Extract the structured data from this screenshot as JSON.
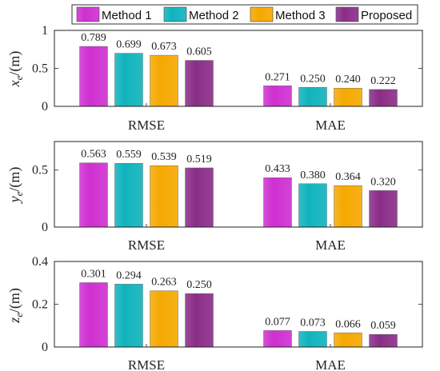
{
  "legend": [
    "Method 1",
    "Method 2",
    "Method 3",
    "Proposed"
  ],
  "colors": [
    "#cf2fd1",
    "#10b3bd",
    "#f5a800",
    "#8a2d88"
  ],
  "chart_data": [
    {
      "type": "bar",
      "ylabel_var": "x",
      "ylabel_sub": "e",
      "ylabel_unit": "/(m)",
      "categories": [
        "RMSE",
        "MAE"
      ],
      "series": [
        {
          "name": "Method 1",
          "values": [
            0.789,
            0.271
          ]
        },
        {
          "name": "Method 2",
          "values": [
            0.699,
            0.25
          ]
        },
        {
          "name": "Method 3",
          "values": [
            0.673,
            0.24
          ]
        },
        {
          "name": "Proposed",
          "values": [
            0.605,
            0.222
          ]
        }
      ],
      "value_labels": [
        [
          "0.789",
          "0.271"
        ],
        [
          "0.699",
          "0.250"
        ],
        [
          "0.673",
          "0.240"
        ],
        [
          "0.605",
          "0.222"
        ]
      ],
      "ylim": [
        0,
        1
      ],
      "yticks": [
        0,
        0.5,
        1
      ],
      "ytick_labels": [
        "0",
        "0.5",
        "1"
      ]
    },
    {
      "type": "bar",
      "ylabel_var": "y",
      "ylabel_sub": "e",
      "ylabel_unit": "/(m)",
      "categories": [
        "RMSE",
        "MAE"
      ],
      "series": [
        {
          "name": "Method 1",
          "values": [
            0.563,
            0.433
          ]
        },
        {
          "name": "Method 2",
          "values": [
            0.559,
            0.38
          ]
        },
        {
          "name": "Method 3",
          "values": [
            0.539,
            0.364
          ]
        },
        {
          "name": "Proposed",
          "values": [
            0.519,
            0.32
          ]
        }
      ],
      "value_labels": [
        [
          "0.563",
          "0.433"
        ],
        [
          "0.559",
          "0.380"
        ],
        [
          "0.539",
          "0.364"
        ],
        [
          "0.519",
          "0.320"
        ]
      ],
      "ylim": [
        0,
        0.75
      ],
      "yticks": [
        0,
        0.5
      ],
      "ytick_labels": [
        "0",
        "0.5"
      ]
    },
    {
      "type": "bar",
      "ylabel_var": "z",
      "ylabel_sub": "e",
      "ylabel_unit": "/(m)",
      "categories": [
        "RMSE",
        "MAE"
      ],
      "series": [
        {
          "name": "Method 1",
          "values": [
            0.301,
            0.077
          ]
        },
        {
          "name": "Method 2",
          "values": [
            0.294,
            0.073
          ]
        },
        {
          "name": "Method 3",
          "values": [
            0.263,
            0.066
          ]
        },
        {
          "name": "Proposed",
          "values": [
            0.25,
            0.059
          ]
        }
      ],
      "value_labels": [
        [
          "0.301",
          "0.077"
        ],
        [
          "0.294",
          "0.073"
        ],
        [
          "0.263",
          "0.066"
        ],
        [
          "0.250",
          "0.059"
        ]
      ],
      "ylim": [
        0,
        0.4
      ],
      "yticks": [
        0,
        0.2,
        0.4
      ],
      "ytick_labels": [
        "0",
        "0.2",
        "0.4"
      ]
    }
  ]
}
